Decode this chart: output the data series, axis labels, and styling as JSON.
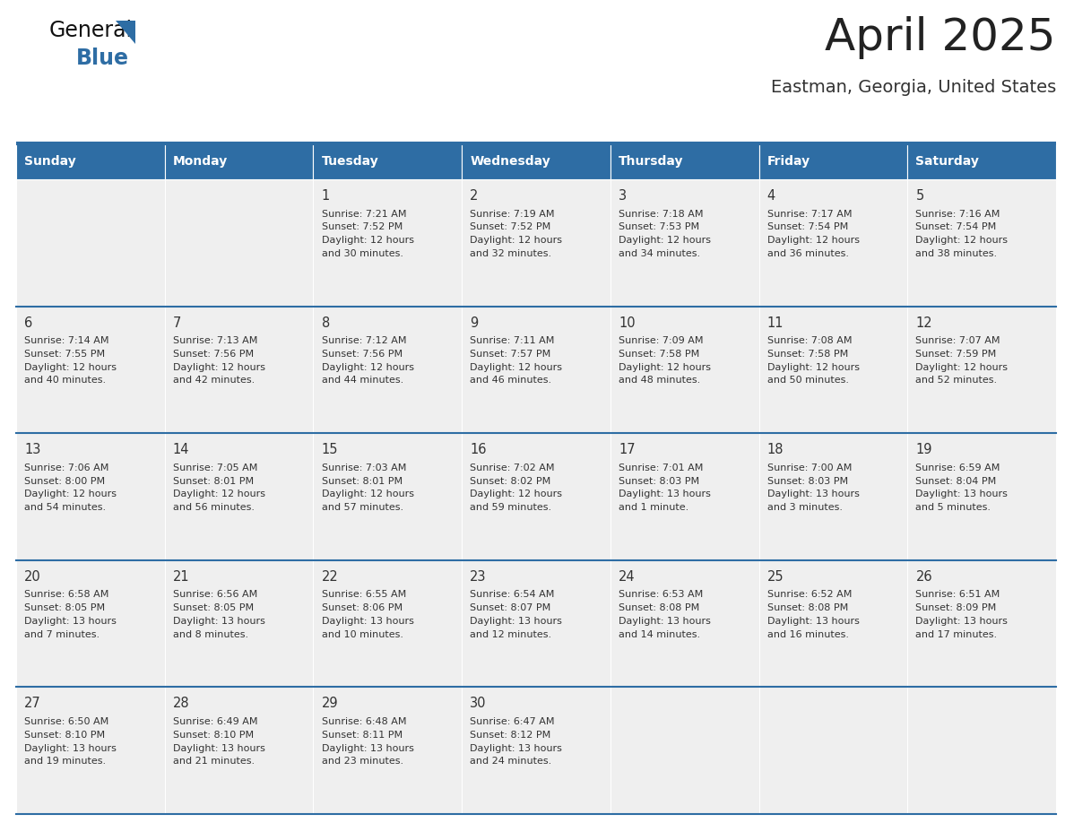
{
  "title": "April 2025",
  "subtitle": "Eastman, Georgia, United States",
  "header_bg_color": "#2E6DA4",
  "header_text_color": "#FFFFFF",
  "cell_bg_color": "#EFEFEF",
  "title_color": "#222222",
  "subtitle_color": "#333333",
  "day_names": [
    "Sunday",
    "Monday",
    "Tuesday",
    "Wednesday",
    "Thursday",
    "Friday",
    "Saturday"
  ],
  "days": [
    {
      "day": 1,
      "col": 2,
      "row": 0,
      "sunrise": "7:21 AM",
      "sunset": "7:52 PM",
      "daylight": "12 hours and 30 minutes."
    },
    {
      "day": 2,
      "col": 3,
      "row": 0,
      "sunrise": "7:19 AM",
      "sunset": "7:52 PM",
      "daylight": "12 hours and 32 minutes."
    },
    {
      "day": 3,
      "col": 4,
      "row": 0,
      "sunrise": "7:18 AM",
      "sunset": "7:53 PM",
      "daylight": "12 hours and 34 minutes."
    },
    {
      "day": 4,
      "col": 5,
      "row": 0,
      "sunrise": "7:17 AM",
      "sunset": "7:54 PM",
      "daylight": "12 hours and 36 minutes."
    },
    {
      "day": 5,
      "col": 6,
      "row": 0,
      "sunrise": "7:16 AM",
      "sunset": "7:54 PM",
      "daylight": "12 hours and 38 minutes."
    },
    {
      "day": 6,
      "col": 0,
      "row": 1,
      "sunrise": "7:14 AM",
      "sunset": "7:55 PM",
      "daylight": "12 hours and 40 minutes."
    },
    {
      "day": 7,
      "col": 1,
      "row": 1,
      "sunrise": "7:13 AM",
      "sunset": "7:56 PM",
      "daylight": "12 hours and 42 minutes."
    },
    {
      "day": 8,
      "col": 2,
      "row": 1,
      "sunrise": "7:12 AM",
      "sunset": "7:56 PM",
      "daylight": "12 hours and 44 minutes."
    },
    {
      "day": 9,
      "col": 3,
      "row": 1,
      "sunrise": "7:11 AM",
      "sunset": "7:57 PM",
      "daylight": "12 hours and 46 minutes."
    },
    {
      "day": 10,
      "col": 4,
      "row": 1,
      "sunrise": "7:09 AM",
      "sunset": "7:58 PM",
      "daylight": "12 hours and 48 minutes."
    },
    {
      "day": 11,
      "col": 5,
      "row": 1,
      "sunrise": "7:08 AM",
      "sunset": "7:58 PM",
      "daylight": "12 hours and 50 minutes."
    },
    {
      "day": 12,
      "col": 6,
      "row": 1,
      "sunrise": "7:07 AM",
      "sunset": "7:59 PM",
      "daylight": "12 hours and 52 minutes."
    },
    {
      "day": 13,
      "col": 0,
      "row": 2,
      "sunrise": "7:06 AM",
      "sunset": "8:00 PM",
      "daylight": "12 hours and 54 minutes."
    },
    {
      "day": 14,
      "col": 1,
      "row": 2,
      "sunrise": "7:05 AM",
      "sunset": "8:01 PM",
      "daylight": "12 hours and 56 minutes."
    },
    {
      "day": 15,
      "col": 2,
      "row": 2,
      "sunrise": "7:03 AM",
      "sunset": "8:01 PM",
      "daylight": "12 hours and 57 minutes."
    },
    {
      "day": 16,
      "col": 3,
      "row": 2,
      "sunrise": "7:02 AM",
      "sunset": "8:02 PM",
      "daylight": "12 hours and 59 minutes."
    },
    {
      "day": 17,
      "col": 4,
      "row": 2,
      "sunrise": "7:01 AM",
      "sunset": "8:03 PM",
      "daylight": "13 hours and 1 minute."
    },
    {
      "day": 18,
      "col": 5,
      "row": 2,
      "sunrise": "7:00 AM",
      "sunset": "8:03 PM",
      "daylight": "13 hours and 3 minutes."
    },
    {
      "day": 19,
      "col": 6,
      "row": 2,
      "sunrise": "6:59 AM",
      "sunset": "8:04 PM",
      "daylight": "13 hours and 5 minutes."
    },
    {
      "day": 20,
      "col": 0,
      "row": 3,
      "sunrise": "6:58 AM",
      "sunset": "8:05 PM",
      "daylight": "13 hours and 7 minutes."
    },
    {
      "day": 21,
      "col": 1,
      "row": 3,
      "sunrise": "6:56 AM",
      "sunset": "8:05 PM",
      "daylight": "13 hours and 8 minutes."
    },
    {
      "day": 22,
      "col": 2,
      "row": 3,
      "sunrise": "6:55 AM",
      "sunset": "8:06 PM",
      "daylight": "13 hours and 10 minutes."
    },
    {
      "day": 23,
      "col": 3,
      "row": 3,
      "sunrise": "6:54 AM",
      "sunset": "8:07 PM",
      "daylight": "13 hours and 12 minutes."
    },
    {
      "day": 24,
      "col": 4,
      "row": 3,
      "sunrise": "6:53 AM",
      "sunset": "8:08 PM",
      "daylight": "13 hours and 14 minutes."
    },
    {
      "day": 25,
      "col": 5,
      "row": 3,
      "sunrise": "6:52 AM",
      "sunset": "8:08 PM",
      "daylight": "13 hours and 16 minutes."
    },
    {
      "day": 26,
      "col": 6,
      "row": 3,
      "sunrise": "6:51 AM",
      "sunset": "8:09 PM",
      "daylight": "13 hours and 17 minutes."
    },
    {
      "day": 27,
      "col": 0,
      "row": 4,
      "sunrise": "6:50 AM",
      "sunset": "8:10 PM",
      "daylight": "13 hours and 19 minutes."
    },
    {
      "day": 28,
      "col": 1,
      "row": 4,
      "sunrise": "6:49 AM",
      "sunset": "8:10 PM",
      "daylight": "13 hours and 21 minutes."
    },
    {
      "day": 29,
      "col": 2,
      "row": 4,
      "sunrise": "6:48 AM",
      "sunset": "8:11 PM",
      "daylight": "13 hours and 23 minutes."
    },
    {
      "day": 30,
      "col": 3,
      "row": 4,
      "sunrise": "6:47 AM",
      "sunset": "8:12 PM",
      "daylight": "13 hours and 24 minutes."
    }
  ],
  "separator_color": "#2E6DA4",
  "cell_text_color": "#333333",
  "num_rows": 5,
  "num_cols": 7,
  "logo_black": "General",
  "logo_blue": "Blue",
  "logo_triangle_color": "#2E6DA4",
  "cell_border_color": "#FFFFFF"
}
